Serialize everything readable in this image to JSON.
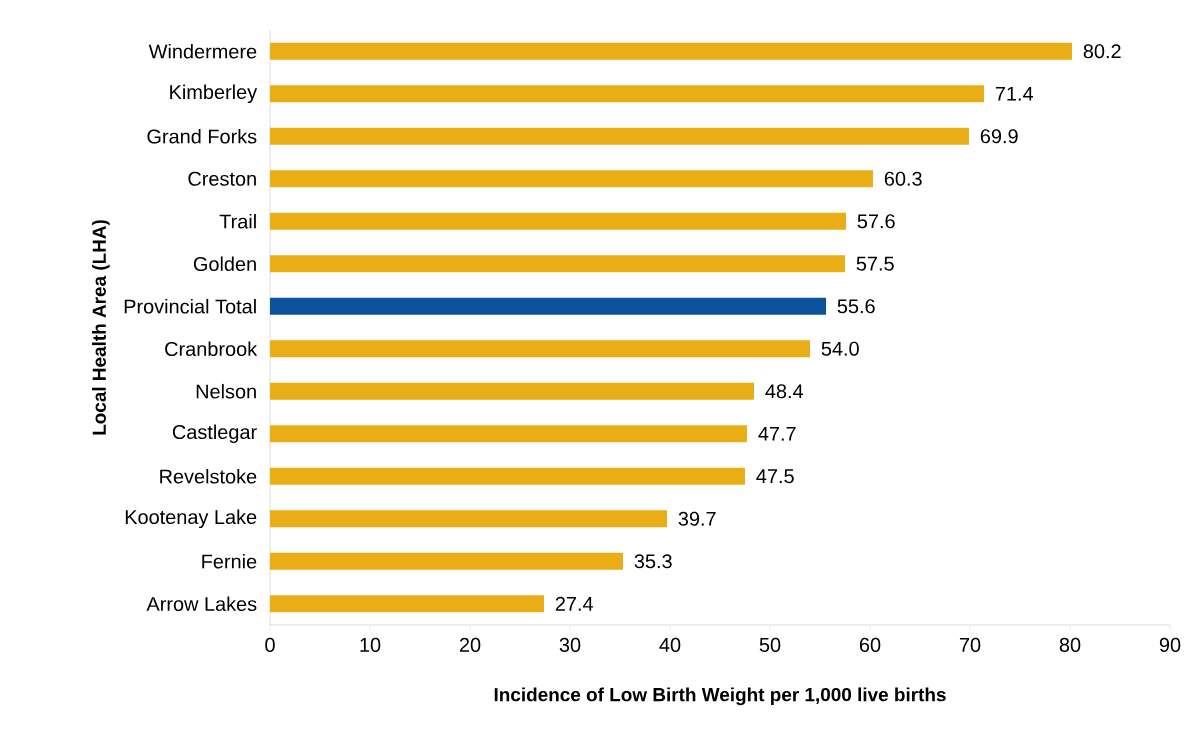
{
  "chart_data": {
    "type": "bar",
    "orientation": "horizontal",
    "xlabel": "Incidence of Low Birth Weight per 1,000 live births",
    "ylabel": "Local Health Area (LHA)",
    "categories": [
      "Windermere",
      "Kimberley",
      "Grand Forks",
      "Creston",
      "Trail",
      "Golden",
      "Provincial Total",
      "Cranbrook",
      "Nelson",
      "Castlegar",
      "Revelstoke",
      "Kootenay Lake",
      "Fernie",
      "Arrow Lakes"
    ],
    "values": [
      80.2,
      71.4,
      69.9,
      60.3,
      57.6,
      57.5,
      55.6,
      54.0,
      48.4,
      47.7,
      47.5,
      39.7,
      35.3,
      27.4
    ],
    "value_labels": [
      "80.2",
      "71.4",
      "69.9",
      "60.3",
      "57.6",
      "57.5",
      "55.6",
      "54.0",
      "48.4",
      "47.7",
      "47.5",
      "39.7",
      "35.3",
      "27.4"
    ],
    "colors": [
      "#e9ae16",
      "#e9ae16",
      "#e9ae16",
      "#e9ae16",
      "#e9ae16",
      "#e9ae16",
      "#0c519c",
      "#e9ae16",
      "#e9ae16",
      "#e9ae16",
      "#e9ae16",
      "#e9ae16",
      "#e9ae16",
      "#e9ae16"
    ],
    "xlim": [
      0,
      90
    ],
    "xticks": [
      0,
      10,
      20,
      30,
      40,
      50,
      60,
      70,
      80,
      90
    ]
  }
}
